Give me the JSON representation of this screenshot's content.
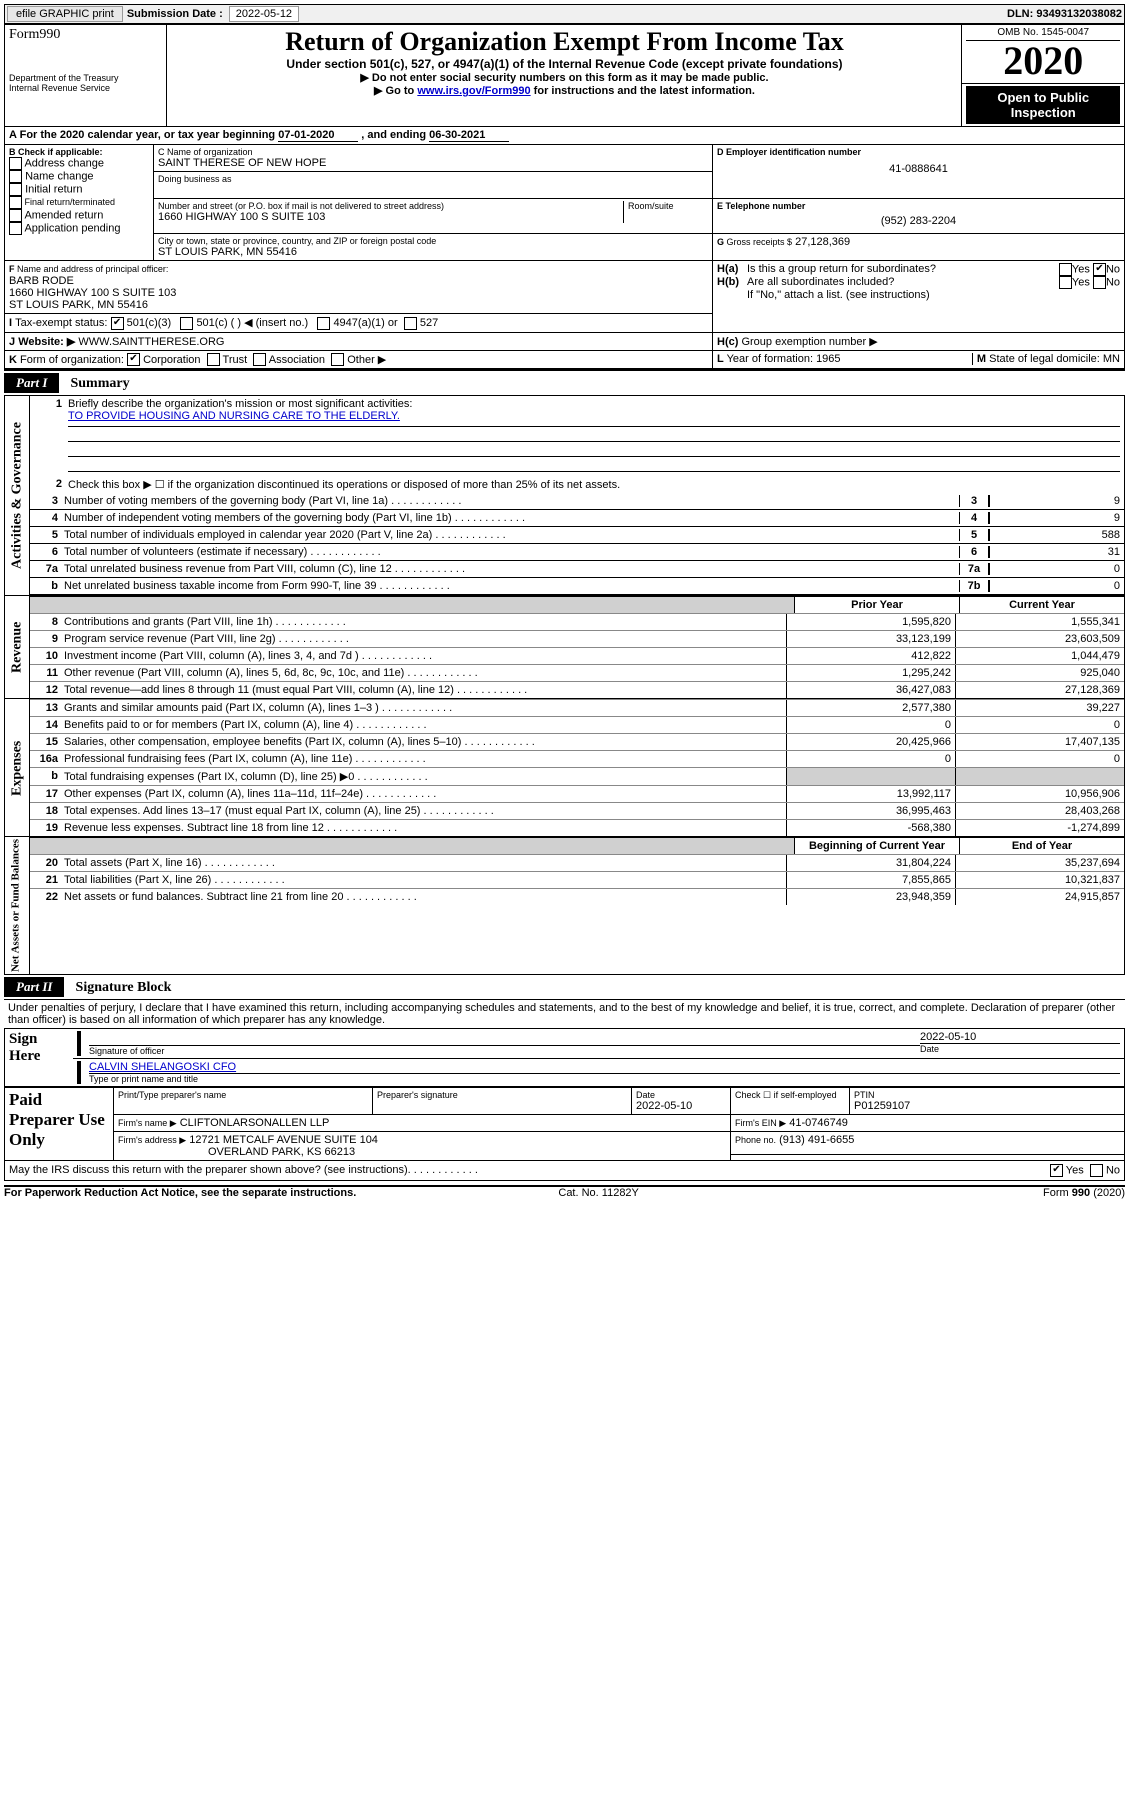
{
  "topbar": {
    "btn_efile": "efile GRAPHIC print",
    "sub_label": "Submission Date :",
    "sub_date": "2022-05-12",
    "dln": "DLN: 93493132038082"
  },
  "header": {
    "form_word": "Form",
    "form_num": "990",
    "dept1": "Department of the Treasury",
    "dept2": "Internal Revenue Service",
    "title": "Return of Organization Exempt From Income Tax",
    "subtitle": "Under section 501(c), 527, or 4947(a)(1) of the Internal Revenue Code (except private foundations)",
    "instr1": "Do not enter social security numbers on this form as it may be made public.",
    "instr2_a": "Go to ",
    "instr2_link": "www.irs.gov/Form990",
    "instr2_b": " for instructions and the latest information.",
    "omb": "OMB No. 1545-0047",
    "year": "2020",
    "public": "Open to Public Inspection"
  },
  "A": {
    "text": "For the 2020 calendar year, or tax year beginning ",
    "begin": "07-01-2020",
    "mid": " , and ending ",
    "end": "06-30-2021"
  },
  "B": {
    "label": "Check if applicable:",
    "items": [
      "Address change",
      "Name change",
      "Initial return",
      "Final return/terminated",
      "Amended return",
      "Application pending"
    ]
  },
  "C": {
    "name_label": "Name of organization",
    "name": "SAINT THERESE OF NEW HOPE",
    "dba_label": "Doing business as",
    "addr_label": "Number and street (or P.O. box if mail is not delivered to street address)",
    "room_label": "Room/suite",
    "addr": "1660 HIGHWAY 100 S SUITE 103",
    "city_label": "City or town, state or province, country, and ZIP or foreign postal code",
    "city": "ST LOUIS PARK, MN  55416"
  },
  "D": {
    "label": "Employer identification number",
    "val": "41-0888641"
  },
  "E": {
    "label": "Telephone number",
    "val": "(952) 283-2204"
  },
  "G": {
    "label": "Gross receipts $",
    "val": "27,128,369"
  },
  "F": {
    "label": "Name and address of principal officer:",
    "name": "BARB RODE",
    "l1": "1660 HIGHWAY 100 S SUITE 103",
    "l2": "ST LOUIS PARK, MN  55416"
  },
  "H": {
    "a": "Is this a group return for subordinates?",
    "b": "Are all subordinates included?",
    "b2": "If \"No,\" attach a list. (see instructions)",
    "c": "Group exemption number ▶",
    "yes": "Yes",
    "no": "No"
  },
  "I": {
    "label": "Tax-exempt status:",
    "o1": "501(c)(3)",
    "o2": "501(c) (  ) ◀ (insert no.)",
    "o3": "4947(a)(1) or",
    "o4": "527"
  },
  "J": {
    "label": "Website: ▶",
    "val": "WWW.SAINTTHERESE.ORG"
  },
  "K": {
    "label": "Form of organization:",
    "o1": "Corporation",
    "o2": "Trust",
    "o3": "Association",
    "o4": "Other ▶"
  },
  "L": {
    "label": "Year of formation:",
    "val": "1965"
  },
  "M": {
    "label": "State of legal domicile:",
    "val": "MN"
  },
  "part1": {
    "tab": "Part I",
    "title": "Summary",
    "side_ag": "Activities & Governance",
    "side_rev": "Revenue",
    "side_exp": "Expenses",
    "side_net": "Net Assets or Fund Balances",
    "l1": "Briefly describe the organization's mission or most significant activities:",
    "l1_val": "TO PROVIDE HOUSING AND NURSING CARE TO THE ELDERLY.",
    "l2": "Check this box ▶ ☐ if the organization discontinued its operations or disposed of more than 25% of its net assets.",
    "rows_ag": [
      {
        "n": "3",
        "t": "Number of voting members of the governing body (Part VI, line 1a)",
        "b": "3",
        "v": "9"
      },
      {
        "n": "4",
        "t": "Number of independent voting members of the governing body (Part VI, line 1b)",
        "b": "4",
        "v": "9"
      },
      {
        "n": "5",
        "t": "Total number of individuals employed in calendar year 2020 (Part V, line 2a)",
        "b": "5",
        "v": "588"
      },
      {
        "n": "6",
        "t": "Total number of volunteers (estimate if necessary)",
        "b": "6",
        "v": "31"
      },
      {
        "n": "7a",
        "t": "Total unrelated business revenue from Part VIII, column (C), line 12",
        "b": "7a",
        "v": "0"
      },
      {
        "n": "b",
        "t": "Net unrelated business taxable income from Form 990-T, line 39",
        "b": "7b",
        "v": "0"
      }
    ],
    "h_prior": "Prior Year",
    "h_curr": "Current Year",
    "rows_rev": [
      {
        "n": "8",
        "t": "Contributions and grants (Part VIII, line 1h)",
        "p": "1,595,820",
        "c": "1,555,341"
      },
      {
        "n": "9",
        "t": "Program service revenue (Part VIII, line 2g)",
        "p": "33,123,199",
        "c": "23,603,509"
      },
      {
        "n": "10",
        "t": "Investment income (Part VIII, column (A), lines 3, 4, and 7d )",
        "p": "412,822",
        "c": "1,044,479"
      },
      {
        "n": "11",
        "t": "Other revenue (Part VIII, column (A), lines 5, 6d, 8c, 9c, 10c, and 11e)",
        "p": "1,295,242",
        "c": "925,040"
      },
      {
        "n": "12",
        "t": "Total revenue—add lines 8 through 11 (must equal Part VIII, column (A), line 12)",
        "p": "36,427,083",
        "c": "27,128,369"
      }
    ],
    "rows_exp": [
      {
        "n": "13",
        "t": "Grants and similar amounts paid (Part IX, column (A), lines 1–3 )",
        "p": "2,577,380",
        "c": "39,227"
      },
      {
        "n": "14",
        "t": "Benefits paid to or for members (Part IX, column (A), line 4)",
        "p": "0",
        "c": "0"
      },
      {
        "n": "15",
        "t": "Salaries, other compensation, employee benefits (Part IX, column (A), lines 5–10)",
        "p": "20,425,966",
        "c": "17,407,135"
      },
      {
        "n": "16a",
        "t": "Professional fundraising fees (Part IX, column (A), line 11e)",
        "p": "0",
        "c": "0"
      },
      {
        "n": "b",
        "t": "Total fundraising expenses (Part IX, column (D), line 25) ▶0",
        "p": "",
        "c": "",
        "shade": true
      },
      {
        "n": "17",
        "t": "Other expenses (Part IX, column (A), lines 11a–11d, 11f–24e)",
        "p": "13,992,117",
        "c": "10,956,906"
      },
      {
        "n": "18",
        "t": "Total expenses. Add lines 13–17 (must equal Part IX, column (A), line 25)",
        "p": "36,995,463",
        "c": "28,403,268"
      },
      {
        "n": "19",
        "t": "Revenue less expenses. Subtract line 18 from line 12",
        "p": "-568,380",
        "c": "-1,274,899"
      }
    ],
    "h_begin": "Beginning of Current Year",
    "h_end": "End of Year",
    "rows_net": [
      {
        "n": "20",
        "t": "Total assets (Part X, line 16)",
        "p": "31,804,224",
        "c": "35,237,694"
      },
      {
        "n": "21",
        "t": "Total liabilities (Part X, line 26)",
        "p": "7,855,865",
        "c": "10,321,837"
      },
      {
        "n": "22",
        "t": "Net assets or fund balances. Subtract line 21 from line 20",
        "p": "23,948,359",
        "c": "24,915,857"
      }
    ]
  },
  "part2": {
    "tab": "Part II",
    "title": "Signature Block",
    "decl": "Under penalties of perjury, I declare that I have examined this return, including accompanying schedules and statements, and to the best of my knowledge and belief, it is true, correct, and complete. Declaration of preparer (other than officer) is based on all information of which preparer has any knowledge.",
    "sign_here": "Sign Here",
    "sig_officer": "Signature of officer",
    "sig_date": "Date",
    "sig_date_val": "2022-05-10",
    "sig_name": "CALVIN SHELANGOSKI CFO",
    "sig_name_label": "Type or print name and title",
    "paid": "Paid Preparer Use Only",
    "p_name_label": "Print/Type preparer's name",
    "p_sig_label": "Preparer's signature",
    "p_date_label": "Date",
    "p_date_val": "2022-05-10",
    "p_self": "Check ☐ if self-employed",
    "p_ptin_label": "PTIN",
    "p_ptin": "P01259107",
    "firm_name_label": "Firm's name    ▶",
    "firm_name": "CLIFTONLARSONALLEN LLP",
    "firm_ein_label": "Firm's EIN ▶",
    "firm_ein": "41-0746749",
    "firm_addr_label": "Firm's address ▶",
    "firm_addr1": "12721 METCALF AVENUE SUITE 104",
    "firm_addr2": "OVERLAND PARK, KS  66213",
    "phone_label": "Phone no.",
    "phone": "(913) 491-6655",
    "discuss": "May the IRS discuss this return with the preparer shown above? (see instructions)"
  },
  "footer": {
    "left": "For Paperwork Reduction Act Notice, see the separate instructions.",
    "mid": "Cat. No. 11282Y",
    "right": "Form 990 (2020)"
  }
}
